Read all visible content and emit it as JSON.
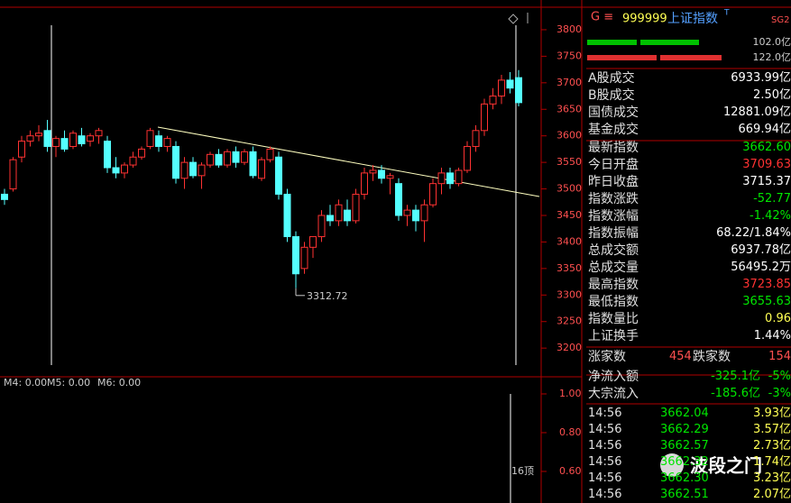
{
  "chart_data": {
    "type": "candlestick",
    "open": [
      3490,
      3500,
      3560,
      3590,
      3600,
      3610,
      3580,
      3595,
      3580,
      3600,
      3590,
      3600,
      3590,
      3540,
      3530,
      3545,
      3560,
      3580,
      3600,
      3580,
      3580,
      3520,
      3550,
      3525,
      3545,
      3565,
      3545,
      3570,
      3550,
      3570,
      3520,
      3555,
      3560,
      3490,
      3410,
      3350,
      3390,
      3410,
      3450,
      3440,
      3460,
      3440,
      3490,
      3530,
      3535,
      3520,
      3510,
      3450,
      3460,
      3440,
      3470,
      3510,
      3530,
      3510,
      3535,
      3580,
      3610,
      3660,
      3675,
      3705,
      3709.63
    ],
    "high": [
      3500,
      3560,
      3600,
      3610,
      3620,
      3630,
      3600,
      3610,
      3610,
      3615,
      3605,
      3615,
      3600,
      3560,
      3550,
      3570,
      3580,
      3615,
      3610,
      3600,
      3590,
      3560,
      3560,
      3550,
      3570,
      3575,
      3575,
      3580,
      3575,
      3580,
      3560,
      3580,
      3570,
      3500,
      3420,
      3400,
      3410,
      3460,
      3470,
      3480,
      3480,
      3500,
      3540,
      3545,
      3545,
      3530,
      3520,
      3470,
      3470,
      3480,
      3520,
      3540,
      3540,
      3540,
      3590,
      3620,
      3670,
      3690,
      3715,
      3720,
      3723.85
    ],
    "low": [
      3470,
      3495,
      3550,
      3580,
      3590,
      3570,
      3560,
      3570,
      3575,
      3580,
      3580,
      3585,
      3530,
      3520,
      3520,
      3540,
      3555,
      3575,
      3570,
      3570,
      3510,
      3500,
      3520,
      3500,
      3540,
      3540,
      3540,
      3540,
      3545,
      3520,
      3515,
      3550,
      3480,
      3400,
      3312.72,
      3340,
      3370,
      3400,
      3430,
      3430,
      3430,
      3435,
      3480,
      3515,
      3510,
      3490,
      3440,
      3430,
      3420,
      3400,
      3465,
      3490,
      3500,
      3505,
      3530,
      3570,
      3600,
      3650,
      3660,
      3680,
      3655.63
    ],
    "close": [
      3480,
      3555,
      3590,
      3600,
      3605,
      3580,
      3595,
      3575,
      3605,
      3585,
      3600,
      3610,
      3540,
      3530,
      3545,
      3560,
      3575,
      3610,
      3580,
      3595,
      3520,
      3550,
      3525,
      3545,
      3565,
      3545,
      3570,
      3550,
      3570,
      3525,
      3555,
      3575,
      3490,
      3410,
      3340,
      3390,
      3410,
      3450,
      3440,
      3470,
      3440,
      3490,
      3530,
      3535,
      3520,
      3525,
      3450,
      3460,
      3440,
      3470,
      3510,
      3530,
      3510,
      3535,
      3580,
      3610,
      3660,
      3675,
      3705,
      3690,
      3662.6
    ],
    "up_color": "#ff3232",
    "down_color": "#54ffff",
    "ylim": [
      3168,
      3839
    ],
    "yticks": [
      3200,
      3250,
      3300,
      3350,
      3400,
      3450,
      3500,
      3550,
      3600,
      3650,
      3700,
      3750,
      3800
    ],
    "annotation": 3312.72
  },
  "volume_panel": {
    "indicators": [
      "M4: 0.00",
      "M5: 0.00",
      "M6: 0.00"
    ],
    "ylim": [
      0.437,
      1.079
    ],
    "yticks": [
      {
        "value": 1,
        "label": "1.00"
      },
      {
        "value": 0.8,
        "label": "0.80"
      },
      {
        "value": 0.6,
        "label": "0.60"
      }
    ],
    "label": "16顶"
  },
  "quote": {
    "header": {
      "prefix": "G ≡",
      "code": "999999",
      "name": "上证指数",
      "flag": "T",
      "tag": "SG2"
    },
    "bars": [
      "102.0亿",
      "122.0亿"
    ],
    "rows": [
      {
        "label": "A股成交",
        "value": "6933.99亿",
        "color": "#ffffff"
      },
      {
        "label": "B股成交",
        "value": "2.50亿",
        "color": "#ffffff"
      },
      {
        "label": "国债成交",
        "value": "12881.09亿",
        "color": "#ffffff"
      },
      {
        "label": "基金成交",
        "value": "669.94亿",
        "color": "#ffffff"
      },
      {
        "label": "最新指数",
        "value": "3662.60",
        "color": "#00e600"
      },
      {
        "label": "今日开盘",
        "value": "3709.63",
        "color": "#ff3232"
      },
      {
        "label": "昨日收盘",
        "value": "3715.37",
        "color": "#ffffff"
      },
      {
        "label": "指数涨跌",
        "value": "-52.77",
        "color": "#00e600"
      },
      {
        "label": "指数涨幅",
        "value": "-1.42%",
        "color": "#00e600"
      },
      {
        "label": "指数振幅",
        "value": "68.22/1.84%",
        "color": "#ffffff"
      },
      {
        "label": "总成交额",
        "value": "6937.78亿",
        "color": "#ffffff"
      },
      {
        "label": "总成交量",
        "value": "56495.2万",
        "color": "#ffffff"
      },
      {
        "label": "最高指数",
        "value": "3723.85",
        "color": "#ff3232"
      },
      {
        "label": "最低指数",
        "value": "3655.63",
        "color": "#00e600"
      },
      {
        "label": "指数量比",
        "value": "0.96",
        "color": "#ffff54"
      },
      {
        "label": "上证换手",
        "value": "1.44%",
        "color": "#ffffff"
      }
    ],
    "breadth": {
      "up_label": "涨家数",
      "up": "454",
      "down_label": "跌家数",
      "down": "154"
    },
    "flows": [
      {
        "label": "净流入额",
        "value": "-325.1亿",
        "pct": "-5%"
      },
      {
        "label": "大宗流入",
        "value": "-185.6亿",
        "pct": "-3%"
      }
    ],
    "ticks": [
      [
        "14:56",
        "3662.04",
        "3.93亿"
      ],
      [
        "14:56",
        "3662.29",
        "3.57亿"
      ],
      [
        "14:56",
        "3662.57",
        "2.73亿"
      ],
      [
        "14:56",
        "3662.32",
        "1.74亿"
      ],
      [
        "14:56",
        "3662.30",
        "3.23亿"
      ],
      [
        "14:56",
        "3662.51",
        "2.07亿"
      ]
    ]
  },
  "watermark": "波段之门"
}
